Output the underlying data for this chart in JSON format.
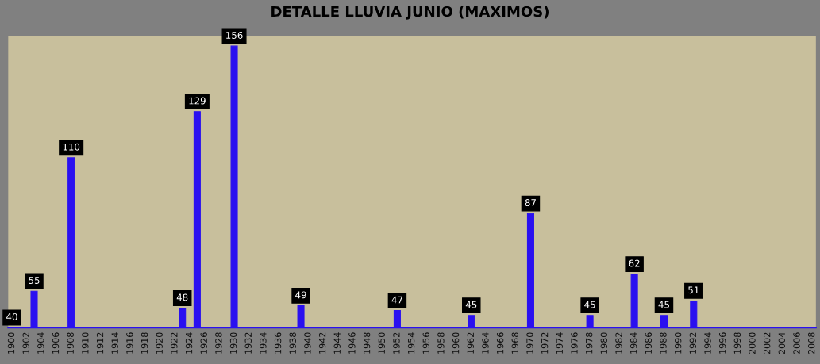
{
  "chart_data": {
    "type": "bar",
    "title": "DETALLE LLUVIA JUNIO (MAXIMOS)",
    "categories": [
      "1900",
      null,
      "1902",
      null,
      "1904",
      null,
      "1906",
      null,
      "1908",
      null,
      "1910",
      null,
      "1912",
      null,
      "1914",
      null,
      "1916",
      null,
      "1918",
      null,
      "1920",
      null,
      "1922",
      null,
      "1924",
      null,
      "1926",
      null,
      "1928",
      null,
      "1930",
      null,
      "1932",
      null,
      "1934",
      null,
      "1936",
      null,
      "1938",
      null,
      "1940",
      null,
      "1942",
      null,
      "1944",
      null,
      "1946",
      null,
      "1948",
      null,
      "1950",
      null,
      "1952",
      null,
      "1954",
      null,
      "1956",
      null,
      "1958",
      null,
      "1960",
      null,
      "1962",
      null,
      "1964",
      null,
      "1966",
      null,
      "1968",
      null,
      "1970",
      null,
      "1972",
      null,
      "1974",
      null,
      "1976",
      null,
      "1978",
      null,
      "1980",
      null,
      "1982",
      null,
      "1984",
      null,
      "1986",
      null,
      "1988",
      null,
      "1990",
      null,
      "1992",
      null,
      "1994",
      null,
      "1996",
      null,
      "1998",
      null,
      "2000",
      null,
      "2002",
      null,
      "2004",
      null,
      "2006",
      null,
      "2008"
    ],
    "values": [
      40,
      null,
      null,
      55,
      null,
      null,
      null,
      null,
      110,
      null,
      null,
      null,
      null,
      null,
      null,
      null,
      null,
      null,
      null,
      null,
      null,
      null,
      null,
      48,
      null,
      129,
      null,
      null,
      null,
      null,
      156,
      null,
      null,
      null,
      null,
      null,
      null,
      null,
      null,
      49,
      null,
      null,
      null,
      null,
      null,
      null,
      null,
      null,
      null,
      null,
      null,
      null,
      47,
      null,
      null,
      null,
      null,
      null,
      null,
      null,
      null,
      null,
      45,
      null,
      null,
      null,
      null,
      null,
      null,
      null,
      87,
      null,
      null,
      null,
      null,
      null,
      null,
      null,
      45,
      null,
      null,
      null,
      null,
      null,
      62,
      null,
      null,
      null,
      45,
      null,
      null,
      null,
      51,
      null,
      null,
      null,
      null,
      null,
      null,
      null,
      null,
      null,
      null,
      null,
      null,
      null,
      null,
      null,
      null
    ],
    "color": "#2a10f0",
    "ylim": [
      40,
      160
    ],
    "tick_labels": "x",
    "data_labels": true,
    "grid": false,
    "legend": false
  }
}
